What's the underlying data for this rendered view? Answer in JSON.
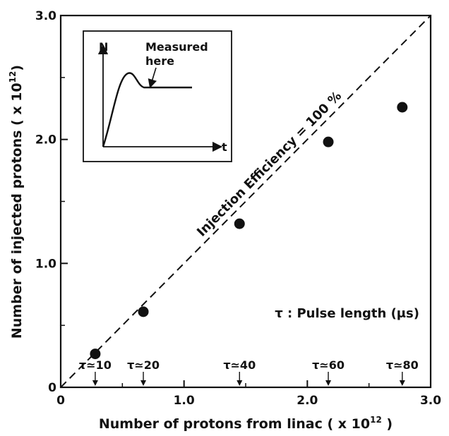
{
  "chart_data": {
    "type": "scatter",
    "title": "",
    "xlabel": "Number of protons from linac",
    "xlabel_unit": "( x 10",
    "xlabel_exp": "12",
    "xlabel_close": " )",
    "ylabel": "Number of injected protons",
    "ylabel_unit": "( x 10",
    "ylabel_exp": "12",
    "ylabel_close": ")",
    "xlim": [
      0,
      3.0
    ],
    "ylim": [
      0,
      3.0
    ],
    "x_ticks": [
      "0",
      "1.0",
      "2.0",
      "3.0"
    ],
    "y_ticks": [
      "0",
      "1.0",
      "2.0",
      "3.0"
    ],
    "grid": false,
    "points": [
      {
        "x": 0.28,
        "y": 0.27
      },
      {
        "x": 0.67,
        "y": 0.61
      },
      {
        "x": 1.45,
        "y": 1.32
      },
      {
        "x": 2.17,
        "y": 1.98
      },
      {
        "x": 2.77,
        "y": 2.26
      }
    ],
    "reference_line": {
      "label": "Injection Efficiency = 100 %",
      "style": "dashed",
      "from": [
        0,
        0
      ],
      "to": [
        3.0,
        3.0
      ]
    },
    "pulse_markers": [
      {
        "x": 0.28,
        "label": "τ≃10"
      },
      {
        "x": 0.67,
        "label": "τ≃20"
      },
      {
        "x": 1.45,
        "label": "τ≃40"
      },
      {
        "x": 2.17,
        "label": "τ≃60"
      },
      {
        "x": 2.77,
        "label": "τ≃80"
      }
    ],
    "annotation": "τ : Pulse length (μs)",
    "inset": {
      "y_axis_label": "N",
      "x_axis_label": "t",
      "note_line1": "Measured",
      "note_line2": "here"
    },
    "marker_color": "#111111"
  }
}
